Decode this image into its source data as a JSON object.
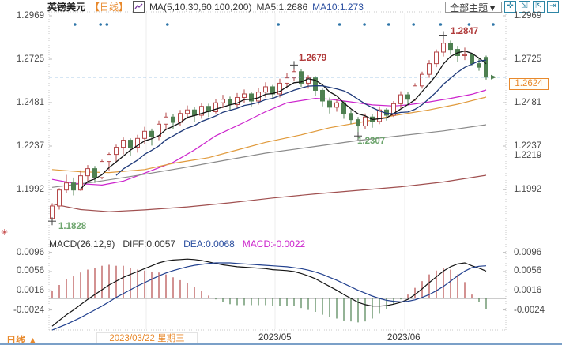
{
  "header": {
    "symbol": "英镑美元",
    "period_tag": "【日线】",
    "ma_group_label": "MA(5,10,30,60,100,200)",
    "ma5_label": "MA5:1.2686",
    "ma10_label": "MA10:1.273",
    "theme_button": "全部主题▼"
  },
  "controls": [
    {
      "name": "pan-icon",
      "glyph": "✛"
    },
    {
      "name": "zoom-region-icon",
      "glyph": "⇲"
    },
    {
      "name": "zoom-reset-icon",
      "glyph": "⇱"
    },
    {
      "name": "exit-icon",
      "glyph": "⇥"
    }
  ],
  "footer": {
    "period_label": "日线 ▲",
    "selected_date": "2023/03/22 星期三",
    "xticks": [
      "2023/05",
      "2023/06"
    ]
  },
  "macd_header": {
    "name": "MACD(26,12,9)",
    "diff_label": "DIFF:0.0057",
    "dea_label": "DEA:0.0068",
    "macd_label": "MACD:-0.0022"
  },
  "axes": {
    "price_left": [
      "1.2969",
      "1.2725",
      "1.2481",
      "1.2237",
      "1.1992"
    ],
    "price_right": [
      "1.2969",
      "1.2725",
      "1.2481",
      "1.2237",
      "1.1992"
    ],
    "macd_left": [
      "0.0096",
      "0.0056",
      "0.0016",
      "-0.0024"
    ],
    "macd_right": [
      "0.0096",
      "0.0056",
      "0.0016",
      "-0.0024"
    ],
    "current_price_label": "1.2624",
    "orange_level_label": "1.2219"
  },
  "annotations": {
    "high1": {
      "text": "1.2847",
      "type": "high"
    },
    "high2": {
      "text": "1.2679",
      "type": "high"
    },
    "low1": {
      "text": "1.2307",
      "type": "low"
    },
    "low2": {
      "text": "1.1828",
      "type": "low"
    }
  },
  "chart_data": {
    "type": "candlestick+macd",
    "title": "英镑美元 日线 (GBP/USD Daily)",
    "price_axis_ticks": [
      1.2969,
      1.2725,
      1.2481,
      1.2237,
      1.1992
    ],
    "macd_axis_ticks": [
      0.0096,
      0.0056,
      0.0016,
      -0.0024
    ],
    "x_axis_labels": [
      "2023/03/22 星期三",
      "2023/05",
      "2023/06"
    ],
    "current_price": 1.2624,
    "orange_level": 1.2219,
    "marked_points": [
      {
        "index": 55,
        "price": 1.2847,
        "label": "1.2847",
        "kind": "high"
      },
      {
        "index": 34,
        "price": 1.2679,
        "label": "1.2679",
        "kind": "high"
      },
      {
        "index": 43,
        "price": 1.2307,
        "label": "1.2307",
        "kind": "low"
      },
      {
        "index": 0,
        "price": 1.1828,
        "label": "1.1828",
        "kind": "low"
      }
    ],
    "event_dot_indices": [
      3.2,
      6.8,
      7.7,
      16.2,
      31.8,
      40.4,
      43.9,
      47.3,
      50.8,
      54.6,
      58.6,
      62
    ],
    "candles": {
      "open": [
        1.183,
        1.19,
        1.199,
        1.203,
        1.199,
        1.207,
        1.211,
        1.206,
        1.215,
        1.219,
        1.223,
        1.227,
        1.223,
        1.228,
        1.232,
        1.229,
        1.236,
        1.24,
        1.237,
        1.242,
        1.244,
        1.241,
        1.246,
        1.243,
        1.248,
        1.25,
        1.247,
        1.251,
        1.253,
        1.249,
        1.254,
        1.257,
        1.253,
        1.259,
        1.262,
        1.2655,
        1.259,
        1.262,
        1.255,
        1.249,
        1.2455,
        1.248,
        1.242,
        1.2385,
        1.235,
        1.24,
        1.2375,
        1.244,
        1.241,
        1.2475,
        1.2525,
        1.25,
        1.2575,
        1.264,
        1.27,
        1.2765,
        1.2815,
        1.278,
        1.2745,
        1.275,
        1.27,
        1.2735
      ],
      "high": [
        1.1915,
        1.2,
        1.2075,
        1.206,
        1.21,
        1.213,
        1.2125,
        1.216,
        1.22,
        1.2245,
        1.2285,
        1.228,
        1.23,
        1.2345,
        1.2335,
        1.238,
        1.2425,
        1.2415,
        1.244,
        1.2465,
        1.2455,
        1.248,
        1.2475,
        1.25,
        1.2525,
        1.2515,
        1.2535,
        1.2555,
        1.254,
        1.2565,
        1.2595,
        1.258,
        1.2615,
        1.2645,
        1.2679,
        1.267,
        1.2635,
        1.263,
        1.256,
        1.251,
        1.25,
        1.249,
        1.244,
        1.24,
        1.242,
        1.2415,
        1.246,
        1.245,
        1.249,
        1.2545,
        1.254,
        1.259,
        1.2655,
        1.272,
        1.278,
        1.2847,
        1.283,
        1.28,
        1.279,
        1.276,
        1.273,
        1.2745
      ],
      "low": [
        1.1828,
        1.188,
        1.1975,
        1.196,
        1.1985,
        1.204,
        1.203,
        1.205,
        1.21,
        1.215,
        1.219,
        1.218,
        1.22,
        1.225,
        1.224,
        1.227,
        1.233,
        1.233,
        1.235,
        1.239,
        1.237,
        1.239,
        1.24,
        1.242,
        1.245,
        1.244,
        1.245,
        1.248,
        1.246,
        1.247,
        1.251,
        1.25,
        1.251,
        1.256,
        1.26,
        1.257,
        1.256,
        1.252,
        1.246,
        1.242,
        1.243,
        1.239,
        1.236,
        1.2307,
        1.233,
        1.234,
        1.236,
        1.238,
        1.24,
        1.245,
        1.247,
        1.249,
        1.256,
        1.262,
        1.268,
        1.274,
        1.275,
        1.271,
        1.272,
        1.269,
        1.266,
        1.261
      ],
      "close": [
        1.19,
        1.199,
        1.203,
        1.199,
        1.207,
        1.211,
        1.206,
        1.215,
        1.219,
        1.223,
        1.227,
        1.223,
        1.228,
        1.232,
        1.229,
        1.236,
        1.24,
        1.237,
        1.242,
        1.244,
        1.241,
        1.246,
        1.243,
        1.248,
        1.25,
        1.247,
        1.251,
        1.253,
        1.249,
        1.254,
        1.257,
        1.253,
        1.259,
        1.262,
        1.2655,
        1.259,
        1.262,
        1.255,
        1.249,
        1.2455,
        1.248,
        1.242,
        1.2385,
        1.235,
        1.24,
        1.2375,
        1.244,
        1.241,
        1.2475,
        1.2525,
        1.25,
        1.2575,
        1.264,
        1.27,
        1.2765,
        1.2815,
        1.278,
        1.2745,
        1.275,
        1.27,
        1.268,
        1.2624
      ]
    },
    "ma_series": [
      {
        "name": "MA30",
        "color": "#cc22cc",
        "points": [
          [
            0,
            1.205
          ],
          [
            3,
            1.2028
          ],
          [
            7,
            1.2018
          ],
          [
            10,
            1.204
          ],
          [
            13,
            1.2085
          ],
          [
            17,
            1.2145
          ],
          [
            20,
            1.2215
          ],
          [
            23,
            1.2295
          ],
          [
            27,
            1.237
          ],
          [
            30,
            1.243
          ],
          [
            33,
            1.248
          ],
          [
            37,
            1.2505
          ],
          [
            39,
            1.25
          ],
          [
            42,
            1.2485
          ],
          [
            45,
            1.2468
          ],
          [
            48,
            1.2462
          ],
          [
            50,
            1.2468
          ],
          [
            53,
            1.2485
          ],
          [
            56,
            1.2505
          ],
          [
            59,
            1.2528
          ],
          [
            61,
            1.2552
          ]
        ]
      },
      {
        "name": "MA60",
        "color": "#e09a3c",
        "points": [
          [
            0,
            1.2105
          ],
          [
            4,
            1.2092
          ],
          [
            8,
            1.2088
          ],
          [
            13,
            1.2105
          ],
          [
            17,
            1.214
          ],
          [
            22,
            1.2172
          ],
          [
            26,
            1.2215
          ],
          [
            30,
            1.2258
          ],
          [
            35,
            1.23
          ],
          [
            39,
            1.234
          ],
          [
            44,
            1.2375
          ],
          [
            48,
            1.2408
          ],
          [
            53,
            1.244
          ],
          [
            57,
            1.2472
          ],
          [
            61,
            1.2512
          ]
        ]
      },
      {
        "name": "MA100",
        "color": "#8a8a8a",
        "points": [
          [
            0,
            1.2005
          ],
          [
            6,
            1.2035
          ],
          [
            12,
            1.2072
          ],
          [
            18,
            1.2112
          ],
          [
            24,
            1.2155
          ],
          [
            30,
            1.2197
          ],
          [
            37,
            1.2235
          ],
          [
            43,
            1.2268
          ],
          [
            49,
            1.2295
          ],
          [
            55,
            1.2322
          ],
          [
            61,
            1.2357
          ]
        ]
      },
      {
        "name": "MA200",
        "color": "#a05050",
        "points": [
          [
            0,
            1.1912
          ],
          [
            4,
            1.188
          ],
          [
            8,
            1.1868
          ],
          [
            13,
            1.1878
          ],
          [
            19,
            1.1895
          ],
          [
            25,
            1.1918
          ],
          [
            31,
            1.1945
          ],
          [
            37,
            1.1968
          ],
          [
            43,
            1.1988
          ],
          [
            49,
            1.2008
          ],
          [
            55,
            1.2035
          ],
          [
            61,
            1.2073
          ]
        ]
      }
    ],
    "ma_computed": [
      {
        "name": "MA5",
        "window": 5,
        "color": "#141414",
        "last_value": 1.2686
      },
      {
        "name": "MA10",
        "window": 10,
        "color": "#1f3a7a",
        "last_value": 1.273
      }
    ],
    "macd": {
      "params": [
        26,
        12,
        9
      ],
      "diff_last": 0.0057,
      "dea_last": 0.0068,
      "macd_last": -0.0022,
      "diff": [
        -0.0058,
        -0.0046,
        -0.0034,
        -0.0024,
        -0.0013,
        -0.0002,
        0.0008,
        0.0018,
        0.0028,
        0.0036,
        0.0044,
        0.005,
        0.0056,
        0.0062,
        0.0068,
        0.0074,
        0.0078,
        0.008,
        0.0081,
        0.0082,
        0.0081,
        0.0079,
        0.0076,
        0.0073,
        0.007,
        0.0068,
        0.0066,
        0.0065,
        0.0064,
        0.0063,
        0.0062,
        0.006,
        0.0059,
        0.0058,
        0.0056,
        0.0052,
        0.0047,
        0.0041,
        0.0033,
        0.0025,
        0.0017,
        0.0008,
        0.0,
        -0.0008,
        -0.0013,
        -0.0016,
        -0.0016,
        -0.0015,
        -0.0012,
        -0.0008,
        -0.0002,
        0.0008,
        0.002,
        0.0033,
        0.0045,
        0.0057,
        0.0066,
        0.0072,
        0.0074,
        0.0068,
        0.0063,
        0.0057
      ],
      "dea": [
        -0.0066,
        -0.006,
        -0.0054,
        -0.0047,
        -0.004,
        -0.0032,
        -0.0024,
        -0.0016,
        -0.0007,
        0.0002,
        0.001,
        0.0018,
        0.0026,
        0.0033,
        0.004,
        0.0047,
        0.0053,
        0.0058,
        0.0062,
        0.0066,
        0.0069,
        0.0071,
        0.0073,
        0.0074,
        0.0074,
        0.0074,
        0.0073,
        0.0072,
        0.0071,
        0.007,
        0.0069,
        0.0068,
        0.0067,
        0.0066,
        0.0064,
        0.0062,
        0.0059,
        0.0055,
        0.005,
        0.0044,
        0.0038,
        0.0031,
        0.0024,
        0.0017,
        0.0011,
        0.0005,
        0.0,
        -0.0004,
        -0.0006,
        -0.0007,
        -0.0006,
        -0.0003,
        0.0002,
        0.0008,
        0.0016,
        0.0025,
        0.0036,
        0.0047,
        0.0057,
        0.0064,
        0.0067,
        0.0068
      ]
    },
    "colors": {
      "up": "#b5494a",
      "down": "#4e8051",
      "dashed_current": "#5b9bd5",
      "event_dot": "#2e75a8",
      "grid": "#ececec",
      "tick": "#bbbbbb",
      "border_dotted": "#c9c9c9",
      "diff_line": "#141414",
      "dea_line": "#22418f",
      "accent_orange": "#e8892c",
      "annotation_high": "#b03a3a",
      "annotation_low": "#6da56d"
    }
  }
}
